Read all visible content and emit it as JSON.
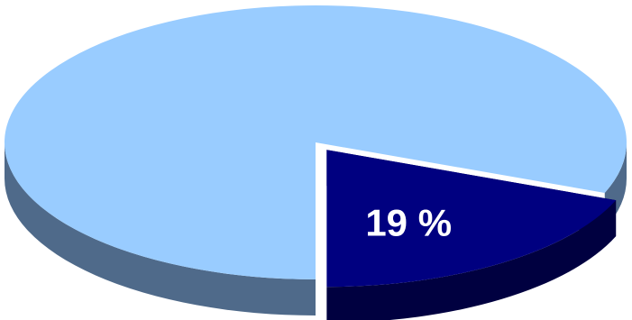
{
  "chart_data": {
    "type": "pie",
    "style": "3d",
    "title": "",
    "slices": [
      {
        "label": "",
        "value": 81,
        "color": "#99ccff",
        "side_color": "#4f6a8a",
        "exploded": false,
        "value_label": ""
      },
      {
        "label": "",
        "value": 19,
        "color": "#000080",
        "side_color": "#000040",
        "exploded": true,
        "value_label": "19 %"
      }
    ],
    "legend": "none"
  }
}
